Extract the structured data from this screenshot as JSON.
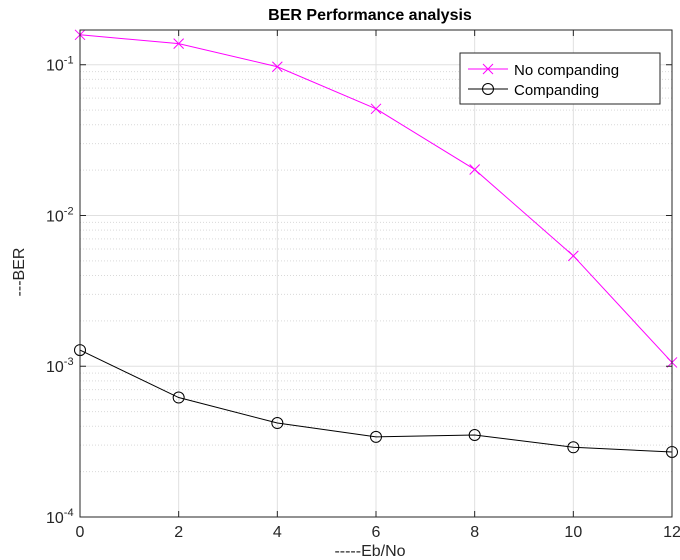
{
  "chart_data": {
    "type": "line",
    "title": "BER Performance analysis",
    "xlabel": "-----Eb/No",
    "ylabel": "---BER",
    "yscale": "log",
    "xlim": [
      0,
      12
    ],
    "ylim": [
      0.0001,
      0.17
    ],
    "xticks": [
      0,
      2,
      4,
      6,
      8,
      10,
      12
    ],
    "xtick_labels": [
      "0",
      "2",
      "4",
      "6",
      "8",
      "10",
      "12"
    ],
    "yticks": [
      0.0001,
      0.001,
      0.01,
      0.1
    ],
    "ytick_labels": [
      {
        "base": "10",
        "exp": "-4"
      },
      {
        "base": "10",
        "exp": "-3"
      },
      {
        "base": "10",
        "exp": "-2"
      },
      {
        "base": "10",
        "exp": "-1"
      }
    ],
    "grid": true,
    "legend_position": "top-right",
    "x": [
      0,
      2,
      4,
      6,
      8,
      10,
      12
    ],
    "series": [
      {
        "name": "No companding",
        "color": "#ff00ff",
        "marker": "x",
        "values": [
          0.158,
          0.138,
          0.097,
          0.051,
          0.0202,
          0.0054,
          0.00106
        ]
      },
      {
        "name": "Companding",
        "color": "#000000",
        "marker": "o",
        "values": [
          0.00128,
          0.00062,
          0.00042,
          0.00034,
          0.00035,
          0.00029,
          0.00027
        ]
      }
    ]
  }
}
